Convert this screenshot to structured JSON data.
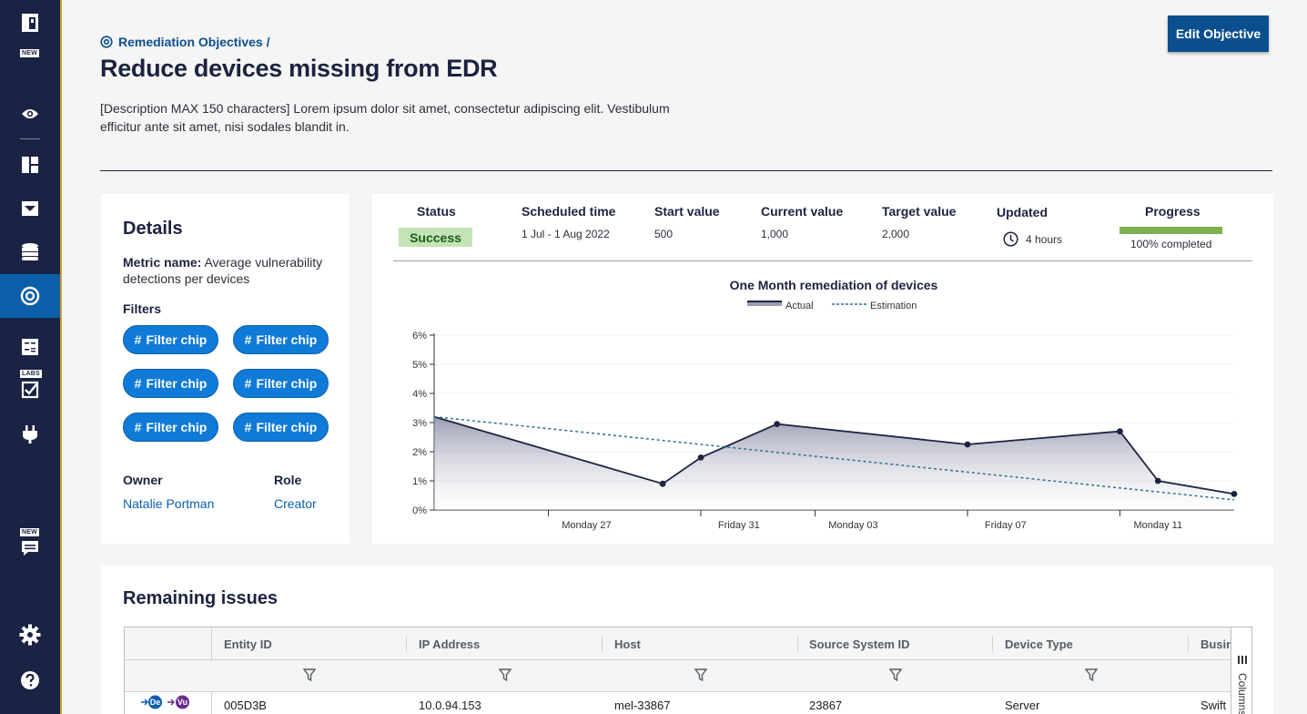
{
  "sidebar": {
    "logo_badge": "NEW",
    "labs_badge": "LABS",
    "chat_badge": "NEW",
    "items": [
      {
        "icon": "eye-icon"
      },
      {
        "icon": "dashboard-icon"
      },
      {
        "icon": "inbox-icon"
      },
      {
        "icon": "database-icon"
      },
      {
        "icon": "target-icon",
        "active": true
      },
      {
        "icon": "calculator-icon"
      },
      {
        "icon": "checklist-icon"
      },
      {
        "icon": "plug-icon"
      },
      {
        "icon": "chat-icon"
      },
      {
        "icon": "gear-icon"
      },
      {
        "icon": "help-icon"
      }
    ]
  },
  "header": {
    "breadcrumb": "Remediation Objectives /",
    "title": "Reduce devices missing from EDR",
    "description": "[Description MAX 150 characters] Lorem ipsum dolor sit amet, consectetur adipiscing elit. Vestibulum efficitur ante sit amet, nisi sodales blandit in.",
    "edit_button": "Edit Objective"
  },
  "details": {
    "title": "Details",
    "metric_label": "Metric name:",
    "metric_value": " Average vulnerability detections per devices",
    "filters_label": "Filters",
    "chips": [
      "Filter chip",
      "Filter chip",
      "Filter chip",
      "Filter chip",
      "Filter chip",
      "Filter chip"
    ],
    "owner_label": "Owner",
    "owner_value": "Natalie Portman",
    "role_label": "Role",
    "role_value": "Creator"
  },
  "stats": {
    "status_label": "Status",
    "status_value": "Success",
    "scheduled_label": "Scheduled time",
    "scheduled_value": "1 Jul - 1 Aug 2022",
    "start_label": "Start value",
    "start_value": "500",
    "current_label": "Current value",
    "current_value": "1,000",
    "target_label": "Target value",
    "target_value": "2,000",
    "updated_label": "Updated",
    "updated_value": "4 hours",
    "progress_label": "Progress",
    "progress_value": "100% completed",
    "progress_fraction": 1.0,
    "colors": {
      "success_bg": "#c4e3b6",
      "progress": "#7cb150"
    }
  },
  "chart_data": {
    "type": "area",
    "title": "One Month remediation of devices",
    "xlabel": "",
    "ylabel": "",
    "ylim": [
      0,
      6
    ],
    "yticks": [
      "0%",
      "1%",
      "2%",
      "3%",
      "4%",
      "5%",
      "6%"
    ],
    "xticks": [
      "Monday 27",
      "Friday 31",
      "Monday 03",
      "Friday 07",
      "Monday 11"
    ],
    "legend_placement": "top-center",
    "grid": true,
    "series": [
      {
        "name": "Actual",
        "style": "solid-area",
        "color": "#1c2340",
        "points": [
          {
            "x": "Thursday 23",
            "y": 3.2
          },
          {
            "x": "Wednesday 29",
            "y": 0.9
          },
          {
            "x": "Thursday 30",
            "y": 1.8
          },
          {
            "x": "Saturday 01",
            "y": 2.95
          },
          {
            "x": "Thursday 06",
            "y": 2.25
          },
          {
            "x": "Wednesday 10",
            "y": 2.7
          },
          {
            "x": "Thursday 11",
            "y": 1.0
          },
          {
            "x": "Saturday 13",
            "y": 0.55
          }
        ]
      },
      {
        "name": "Estimation",
        "style": "dashed",
        "color": "#2f6f8f",
        "points": [
          {
            "x": "Thursday 23",
            "y": 3.2
          },
          {
            "x": "Saturday 13",
            "y": 0.35
          }
        ]
      }
    ]
  },
  "issues": {
    "title": "Remaining issues",
    "columns": [
      "Entity ID",
      "IP Address",
      "Host",
      "Source System ID",
      "Device Type",
      "Busin"
    ],
    "side_label": "Columns",
    "rows": [
      {
        "icons": [
          "De",
          "Vu"
        ],
        "cells": [
          "005D3B",
          "10.0.94.153",
          "mel-33867",
          "23867",
          "Server",
          "Swift"
        ]
      }
    ]
  }
}
